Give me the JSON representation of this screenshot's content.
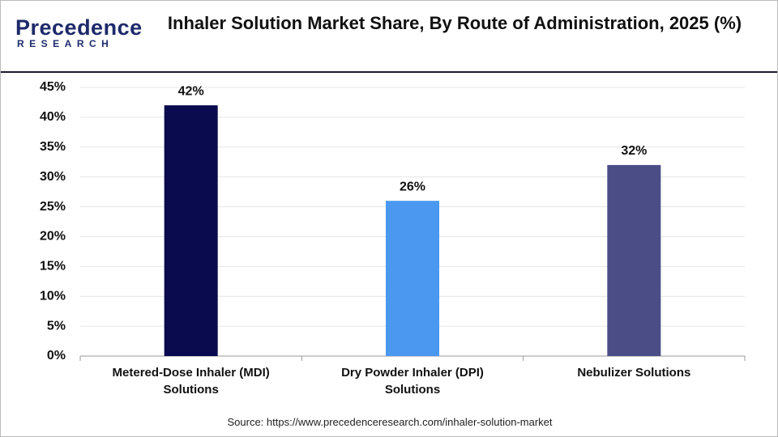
{
  "logo": {
    "name": "Precedence",
    "tagline": "RESEARCH"
  },
  "chart_data": {
    "type": "bar",
    "title": "Inhaler Solution Market Share, By Route of Administration, 2025 (%)",
    "categories": [
      "Metered-Dose Inhaler (MDI) Solutions",
      "Dry Powder Inhaler (DPI) Solutions",
      "Nebulizer Solutions"
    ],
    "values": [
      42,
      26,
      32
    ],
    "value_labels": [
      "42%",
      "26%",
      "32%"
    ],
    "colors": [
      "#0a0a4e",
      "#4a98f0",
      "#4b4d87"
    ],
    "ylim": [
      0,
      45
    ],
    "yticks": [
      {
        "value": 0,
        "label": "0%"
      },
      {
        "value": 5,
        "label": "5%"
      },
      {
        "value": 10,
        "label": "10%"
      },
      {
        "value": 15,
        "label": "15%"
      },
      {
        "value": 20,
        "label": "20%"
      },
      {
        "value": 25,
        "label": "25%"
      },
      {
        "value": 30,
        "label": "30%"
      },
      {
        "value": 35,
        "label": "35%"
      },
      {
        "value": 40,
        "label": "40%"
      },
      {
        "value": 45,
        "label": "45%"
      }
    ],
    "grid": true
  },
  "source": "Source: https://www.precedenceresearch.com/inhaler-solution-market"
}
